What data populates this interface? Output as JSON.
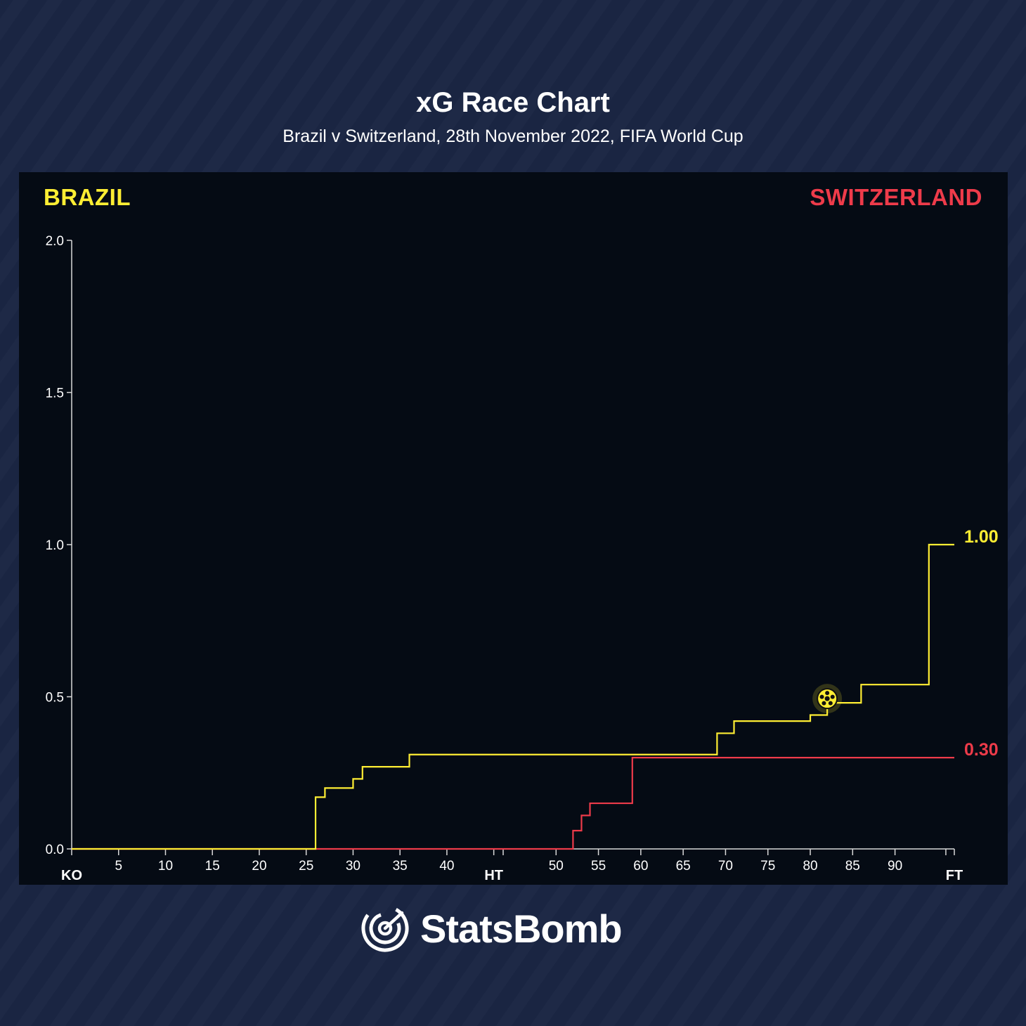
{
  "header": {
    "title": "xG Race Chart",
    "subtitle": "Brazil v Switzerland, 28th November 2022, FIFA World Cup"
  },
  "teams": {
    "home": {
      "name": "BRAZIL",
      "color": "#ffee33"
    },
    "away": {
      "name": "SWITZERLAND",
      "color": "#ee3b4a"
    }
  },
  "brand": {
    "name": "StatsBomb",
    "logo_icon": "statsbomb-logo-icon"
  },
  "chart_data": {
    "type": "line",
    "step": true,
    "title": "xG Race Chart",
    "xlabel": "",
    "ylabel": "",
    "ylim": [
      0,
      2
    ],
    "yticks": [
      0.0,
      0.5,
      1.0,
      1.5,
      2.0
    ],
    "ytick_labels": [
      "0.0",
      "0.5",
      "1.0",
      "1.5",
      "2.0"
    ],
    "x_first_half": {
      "range": [
        0,
        46
      ],
      "tick_values": [
        0,
        5,
        10,
        15,
        20,
        25,
        30,
        35,
        40
      ],
      "tick_labels": [
        "KO",
        "5",
        "10",
        "15",
        "20",
        "25",
        "30",
        "35",
        "40"
      ]
    },
    "x_second_half": {
      "range": [
        45,
        97
      ],
      "tick_values": [
        45,
        50,
        55,
        60,
        65,
        70,
        75,
        80,
        85,
        90,
        97
      ],
      "tick_labels": [
        "HT",
        "50",
        "55",
        "60",
        "65",
        "70",
        "75",
        "80",
        "85",
        "90",
        "FT"
      ]
    },
    "grid": false,
    "series": [
      {
        "name": "BRAZIL",
        "color": "#ffee33",
        "final_label": "1.00",
        "points": [
          [
            0,
            0
          ],
          [
            26,
            0.17
          ],
          [
            27,
            0.2
          ],
          [
            30,
            0.23
          ],
          [
            31,
            0.27
          ],
          [
            36,
            0.31
          ],
          [
            69,
            0.38
          ],
          [
            71,
            0.42
          ],
          [
            80,
            0.44
          ],
          [
            82,
            0.48
          ],
          [
            86,
            0.54
          ],
          [
            94,
            1.0
          ],
          [
            97,
            1.0
          ]
        ],
        "goals": [
          [
            82,
            0.48
          ]
        ]
      },
      {
        "name": "SWITZERLAND",
        "color": "#ee3b4a",
        "final_label": "0.30",
        "points": [
          [
            0,
            0
          ],
          [
            52,
            0.06
          ],
          [
            53,
            0.11
          ],
          [
            54,
            0.15
          ],
          [
            59,
            0.3
          ],
          [
            97,
            0.3
          ]
        ],
        "goals": []
      }
    ]
  }
}
